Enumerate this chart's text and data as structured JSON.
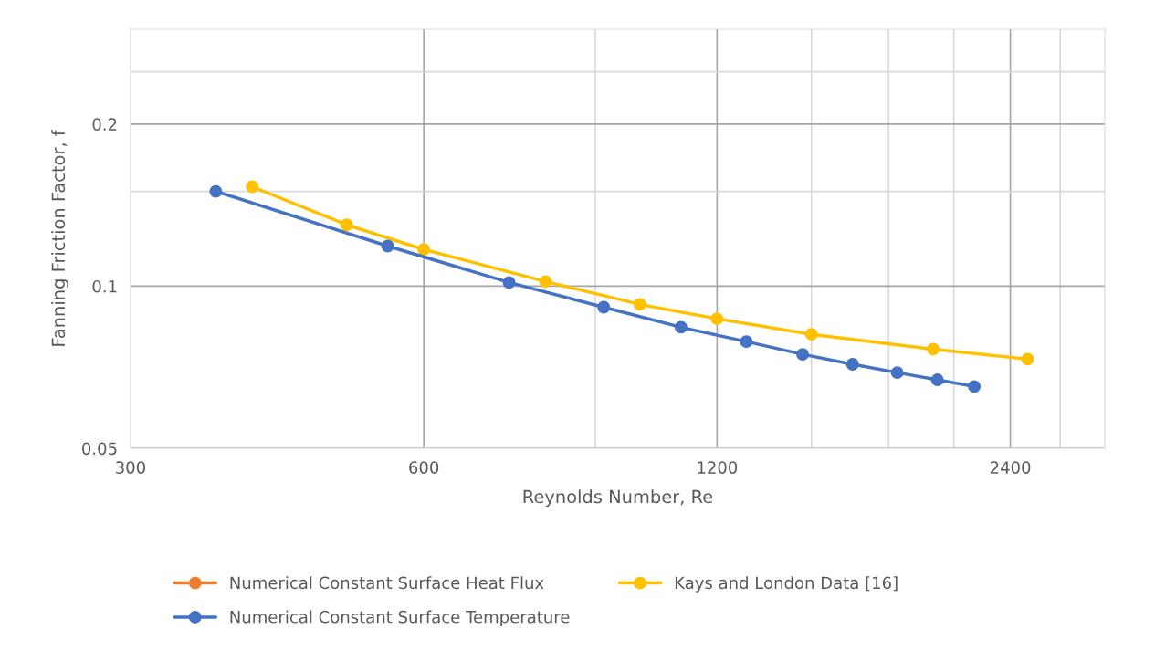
{
  "chart_data": {
    "type": "line",
    "xlabel": "Reynolds Number, Re",
    "ylabel": "Fanning Friction Factor, f",
    "log": "xy",
    "grid": true,
    "legend": "bottom",
    "marker": "circle",
    "line_style": "solid",
    "xlim": [
      300,
      3000
    ],
    "xticks": [
      300,
      600,
      {
        "value": 900,
        "label": null
      },
      1200,
      {
        "value": 1500,
        "label": null
      },
      {
        "value": 1800,
        "label": null
      },
      {
        "value": 2100,
        "label": null
      },
      2400,
      {
        "value": 2700,
        "label": null
      }
    ],
    "ylim": [
      0.05,
      0.3
    ],
    "yticks": [
      0.05,
      0.1,
      {
        "value": 0.15,
        "label": null
      },
      0.2,
      {
        "value": 0.25,
        "label": null
      }
    ],
    "series": [
      {
        "name": "Numerical Constant Surface Heat Flux",
        "color": "#ed7d31"
      },
      {
        "name": "Kays and London Data [16]",
        "color": "#ffc000",
        "x": [
          400,
          500,
          600,
          800,
          1000,
          1200,
          1500,
          2000,
          2500
        ],
        "values": [
          0.153,
          0.13,
          0.117,
          0.102,
          0.0925,
          0.087,
          0.0814,
          0.0764,
          0.0732
        ]
      },
      {
        "name": "Numerical Constant Surface Temperature",
        "color": "#4472c4",
        "x": [
          367,
          551,
          734,
          918,
          1102,
          1286,
          1469,
          1653,
          1837,
          2020,
          2204
        ],
        "values": [
          0.15,
          0.1187,
          0.1016,
          0.0914,
          0.0839,
          0.0789,
          0.0747,
          0.0716,
          0.0691,
          0.067,
          0.0651
        ]
      }
    ]
  }
}
